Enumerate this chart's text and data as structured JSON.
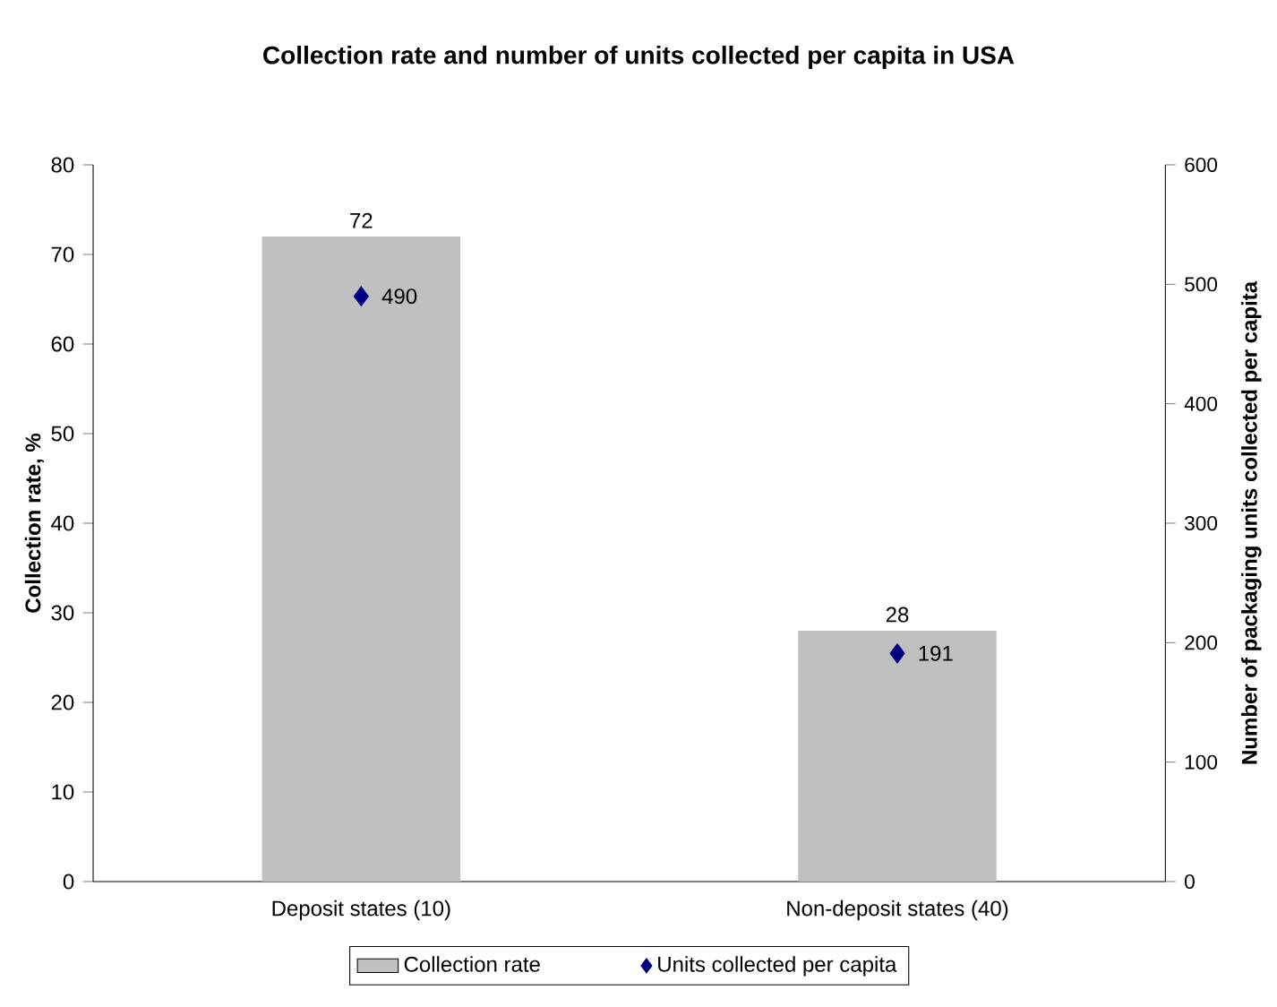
{
  "chart_data": {
    "type": "bar",
    "title": "Collection rate and number of units collected per capita in USA",
    "ylabel": "Collection rate, %",
    "y2label": "Number of packaging units collected per capita",
    "categories": [
      "Deposit states (10)",
      "Non-deposit states (40)"
    ],
    "series": [
      {
        "name": "Collection rate",
        "color": "#c0c0c0",
        "values": [
          72,
          28
        ]
      },
      {
        "name": "Units collected per capita",
        "type": "scatter",
        "axis": "y2",
        "marker": "diamond",
        "color": "#000080",
        "values": [
          490,
          191
        ]
      }
    ],
    "ylim": [
      0,
      80
    ],
    "yticks": [
      0,
      10,
      20,
      30,
      40,
      50,
      60,
      70,
      80
    ],
    "y2lim": [
      0,
      600
    ],
    "y2ticks": [
      0,
      100,
      200,
      300,
      400,
      500,
      600
    ],
    "data_labels": true,
    "legend": "bottom",
    "grid": false
  }
}
